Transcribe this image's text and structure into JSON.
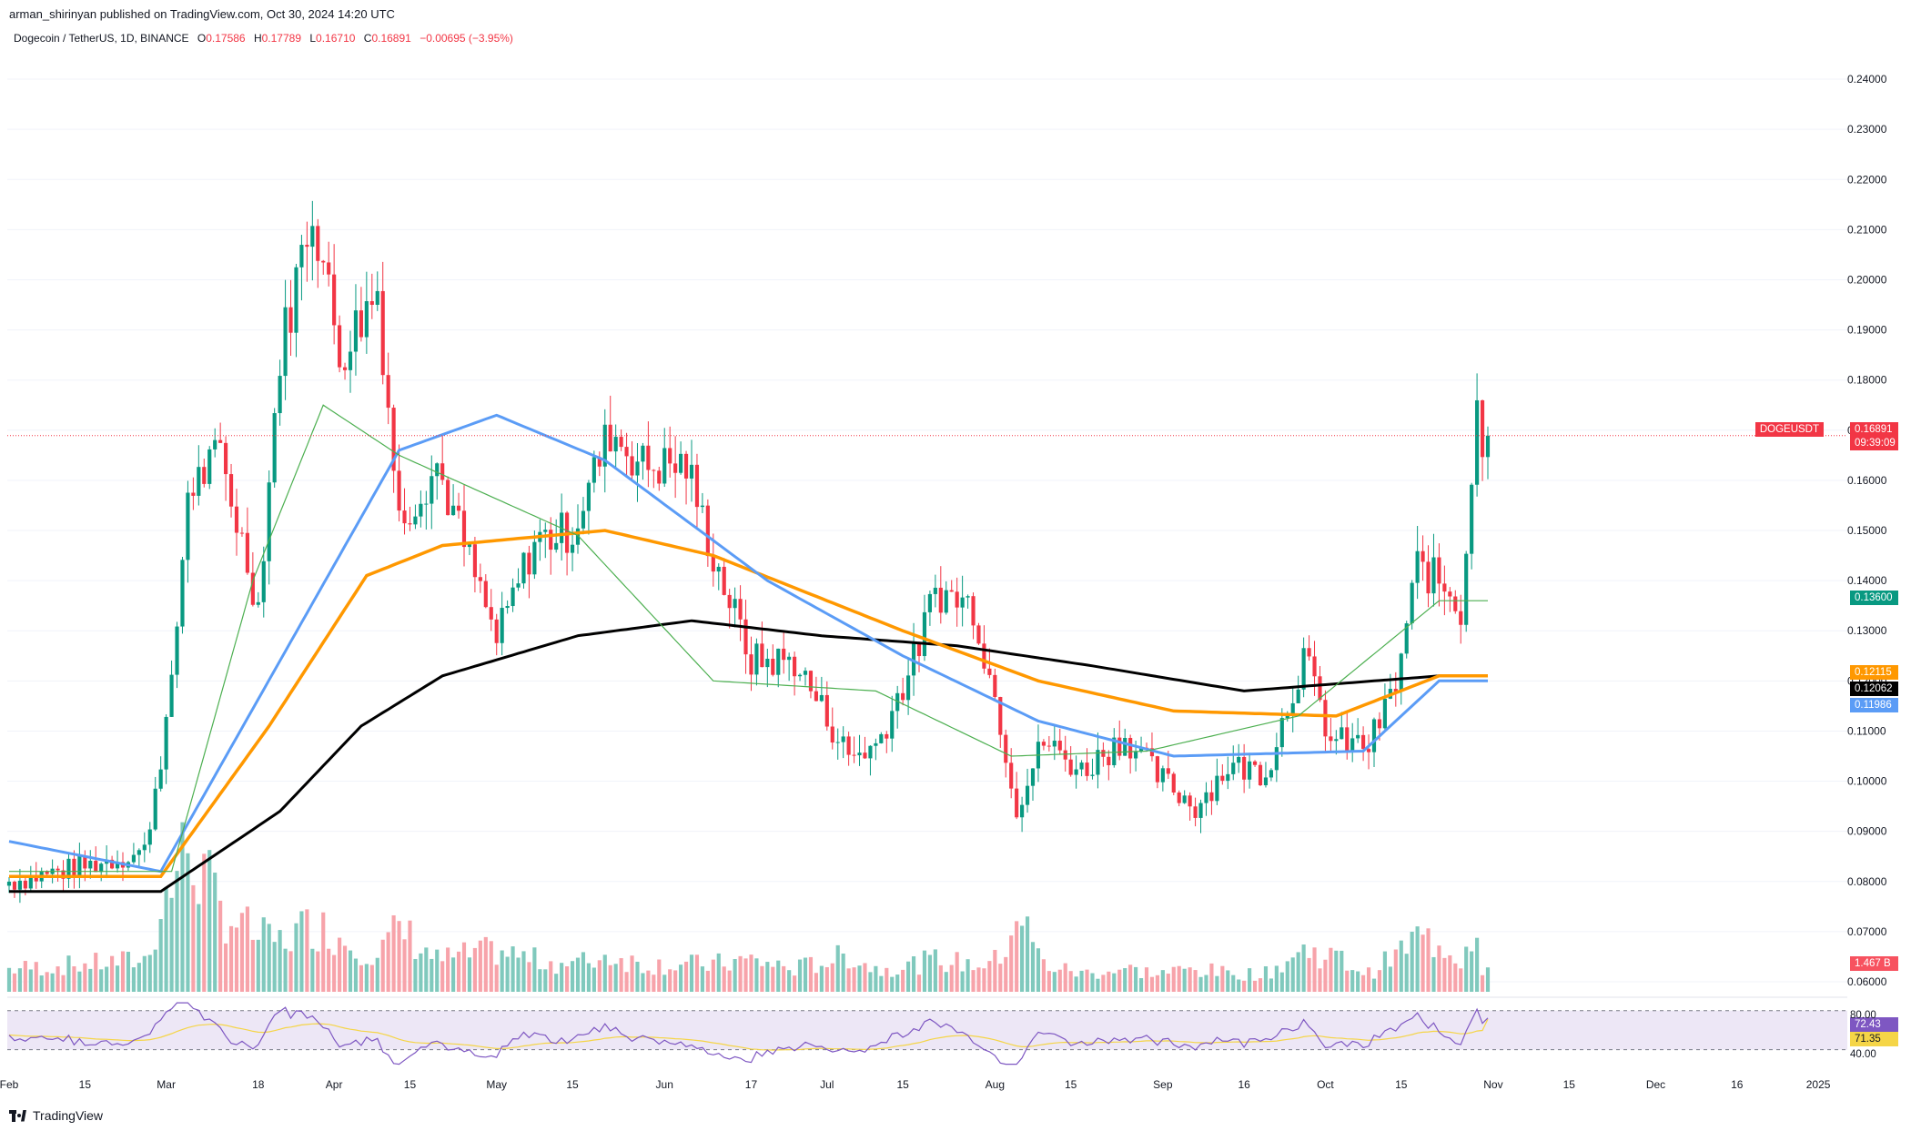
{
  "header": {
    "published": "arman_shirinyan published on TradingView.com, Oct 30, 2024 14:20 UTC",
    "symbol": "Dogecoin / TetherUS, 1D, BINANCE",
    "o_label": "O",
    "o_value": "0.17586",
    "h_label": "H",
    "h_value": "0.17789",
    "l_label": "L",
    "l_value": "0.16710",
    "c_label": "C",
    "c_value": "0.16891",
    "change": "−0.00695 (−3.95%)"
  },
  "footer": {
    "brand": "TradingView"
  },
  "price_tags": {
    "symbol": "DOGEUSDT",
    "last": "0.16891",
    "countdown": "09:39:09",
    "ma_green": "0.13600",
    "ma_orange": "0.12115",
    "ma_black": "0.12062",
    "ma_blue": "0.11986",
    "volume": "1.467 B",
    "rsi": "72.43",
    "rsi_ma": "71.35",
    "rsi_upper": "80.00",
    "rsi_lower": "40.00"
  },
  "colors": {
    "up": "#089981",
    "down": "#f23645",
    "vol_up": "#80c9bd",
    "vol_down": "#f7a3aa",
    "ma_green": "#4caf50",
    "ma_blue": "#5b9cf6",
    "ma_orange": "#ff9800",
    "ma_black": "#000000",
    "rsi": "#7e57c2",
    "rsi_ma": "#f5d547",
    "last_price": "#f23645",
    "rsi_band": "#ede7f6"
  },
  "chart_data": {
    "type": "candlestick",
    "title": "Dogecoin / TetherUS, 1D, BINANCE",
    "x_tick_labels": [
      "Feb",
      "15",
      "Mar",
      "18",
      "Apr",
      "15",
      "May",
      "15",
      "Jun",
      "17",
      "Jul",
      "15",
      "Aug",
      "15",
      "Sep",
      "16",
      "Oct",
      "15",
      "Nov",
      "15",
      "Dec",
      "16",
      "2025"
    ],
    "y_tick_labels": [
      "0.24000",
      "0.23000",
      "0.22000",
      "0.21000",
      "0.20000",
      "0.19000",
      "0.18000",
      "0.17000",
      "0.16000",
      "0.15000",
      "0.14000",
      "0.13000",
      "0.12000",
      "0.11000",
      "0.10000",
      "0.09000",
      "0.08000",
      "0.07000",
      "0.06000"
    ],
    "ylim": [
      0.058,
      0.244
    ],
    "last_price": 0.16891,
    "anchors": [
      {
        "date": "Feb 1",
        "price": 0.08,
        "vol": 0.25
      },
      {
        "date": "Feb 15",
        "price": 0.083,
        "vol": 0.3
      },
      {
        "date": "Feb 26",
        "price": 0.086,
        "vol": 0.35
      },
      {
        "date": "Mar 2",
        "price": 0.118,
        "vol": 1.2
      },
      {
        "date": "Mar 5",
        "price": 0.158,
        "vol": 1.6
      },
      {
        "date": "Mar 11",
        "price": 0.165,
        "vol": 0.9
      },
      {
        "date": "Mar 18",
        "price": 0.135,
        "vol": 0.6
      },
      {
        "date": "Mar 22",
        "price": 0.185,
        "vol": 0.55
      },
      {
        "date": "Mar 28",
        "price": 0.215,
        "vol": 0.75
      },
      {
        "date": "Apr 2",
        "price": 0.185,
        "vol": 0.6
      },
      {
        "date": "Apr 9",
        "price": 0.198,
        "vol": 0.4
      },
      {
        "date": "Apr 13",
        "price": 0.152,
        "vol": 0.7
      },
      {
        "date": "Apr 20",
        "price": 0.163,
        "vol": 0.35
      },
      {
        "date": "May 1",
        "price": 0.128,
        "vol": 0.45
      },
      {
        "date": "May 8",
        "price": 0.148,
        "vol": 0.35
      },
      {
        "date": "May 15",
        "price": 0.15,
        "vol": 0.3
      },
      {
        "date": "May 22",
        "price": 0.17,
        "vol": 0.4
      },
      {
        "date": "May 28",
        "price": 0.163,
        "vol": 0.3
      },
      {
        "date": "Jun 5",
        "price": 0.163,
        "vol": 0.3
      },
      {
        "date": "Jun 10",
        "price": 0.145,
        "vol": 0.3
      },
      {
        "date": "Jun 17",
        "price": 0.124,
        "vol": 0.35
      },
      {
        "date": "Jun 25",
        "price": 0.124,
        "vol": 0.25
      },
      {
        "date": "Jul 5",
        "price": 0.105,
        "vol": 0.4
      },
      {
        "date": "Jul 10",
        "price": 0.107,
        "vol": 0.25
      },
      {
        "date": "Jul 17",
        "price": 0.124,
        "vol": 0.3
      },
      {
        "date": "Jul 21",
        "price": 0.138,
        "vol": 0.35
      },
      {
        "date": "Jul 28",
        "price": 0.135,
        "vol": 0.3
      },
      {
        "date": "Aug 2",
        "price": 0.112,
        "vol": 0.35
      },
      {
        "date": "Aug 5",
        "price": 0.095,
        "vol": 0.9
      },
      {
        "date": "Aug 10",
        "price": 0.108,
        "vol": 0.3
      },
      {
        "date": "Aug 17",
        "price": 0.102,
        "vol": 0.2
      },
      {
        "date": "Aug 25",
        "price": 0.109,
        "vol": 0.25
      },
      {
        "date": "Aug 31",
        "price": 0.101,
        "vol": 0.2
      },
      {
        "date": "Sep 7",
        "price": 0.095,
        "vol": 0.25
      },
      {
        "date": "Sep 13",
        "price": 0.103,
        "vol": 0.2
      },
      {
        "date": "Sep 20",
        "price": 0.102,
        "vol": 0.2
      },
      {
        "date": "Sep 27",
        "price": 0.125,
        "vol": 0.45
      },
      {
        "date": "Oct 2",
        "price": 0.108,
        "vol": 0.4
      },
      {
        "date": "Oct 9",
        "price": 0.107,
        "vol": 0.2
      },
      {
        "date": "Oct 14",
        "price": 0.119,
        "vol": 0.4
      },
      {
        "date": "Oct 18",
        "price": 0.143,
        "vol": 0.6
      },
      {
        "date": "Oct 24",
        "price": 0.138,
        "vol": 0.5
      },
      {
        "date": "Oct 26",
        "price": 0.134,
        "vol": 0.35
      },
      {
        "date": "Oct 29",
        "price": 0.174,
        "vol": 0.8
      },
      {
        "date": "Oct 30",
        "price": 0.169,
        "vol": 0.25
      }
    ],
    "ma": {
      "green": [
        [
          0,
          0.082
        ],
        [
          30,
          0.082
        ],
        [
          45,
          0.14
        ],
        [
          58,
          0.175
        ],
        [
          72,
          0.165
        ],
        [
          105,
          0.149
        ],
        [
          130,
          0.12
        ],
        [
          160,
          0.118
        ],
        [
          185,
          0.105
        ],
        [
          210,
          0.106
        ],
        [
          238,
          0.113
        ],
        [
          264,
          0.136
        ]
      ],
      "blue": [
        [
          0,
          0.088
        ],
        [
          28,
          0.082
        ],
        [
          50,
          0.124
        ],
        [
          72,
          0.166
        ],
        [
          90,
          0.173
        ],
        [
          110,
          0.164
        ],
        [
          140,
          0.14
        ],
        [
          165,
          0.125
        ],
        [
          190,
          0.112
        ],
        [
          215,
          0.105
        ],
        [
          250,
          0.106
        ],
        [
          264,
          0.12
        ]
      ],
      "orange": [
        [
          0,
          0.081
        ],
        [
          28,
          0.081
        ],
        [
          48,
          0.111
        ],
        [
          66,
          0.141
        ],
        [
          80,
          0.147
        ],
        [
          110,
          0.15
        ],
        [
          130,
          0.145
        ],
        [
          165,
          0.13
        ],
        [
          190,
          0.12
        ],
        [
          215,
          0.114
        ],
        [
          245,
          0.113
        ],
        [
          264,
          0.121
        ]
      ],
      "black": [
        [
          0,
          0.078
        ],
        [
          28,
          0.078
        ],
        [
          50,
          0.094
        ],
        [
          65,
          0.111
        ],
        [
          80,
          0.121
        ],
        [
          105,
          0.129
        ],
        [
          126,
          0.132
        ],
        [
          150,
          0.129
        ],
        [
          175,
          0.127
        ],
        [
          200,
          0.123
        ],
        [
          228,
          0.118
        ],
        [
          264,
          0.121
        ]
      ]
    },
    "volume_last": "1.467 B",
    "rsi": {
      "value": 72.43,
      "ma": 71.35,
      "upper": 80,
      "lower": 40
    }
  }
}
